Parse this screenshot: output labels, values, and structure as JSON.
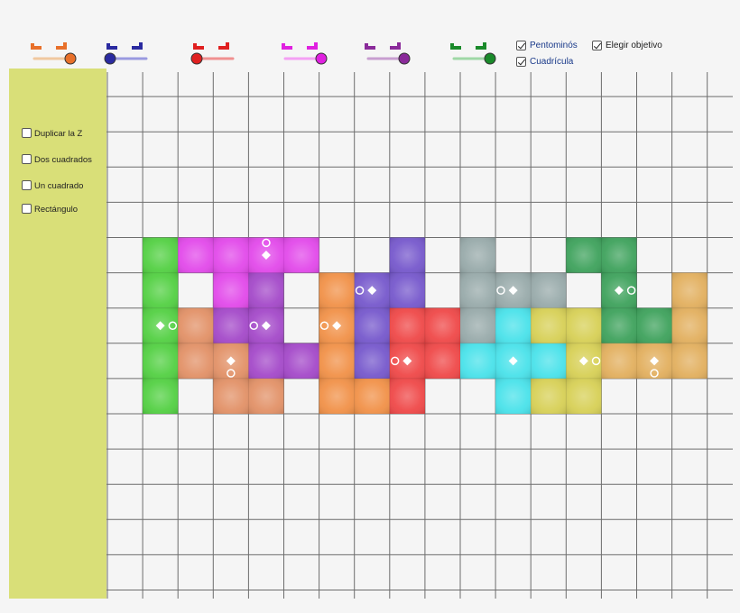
{
  "colors": {
    "sidebar_bg": "#d9df78",
    "grid_line": "#6d6d6d",
    "link_blue": "#1a3a8a"
  },
  "sliders": [
    {
      "name": "orange",
      "color": "#e8702a",
      "track_color": "#f0c89f",
      "level": 1.0
    },
    {
      "name": "navy",
      "color": "#2a2aa0",
      "track_color": "#9a9ae0",
      "level": 0.0
    },
    {
      "name": "red",
      "color": "#e02020",
      "track_color": "#f09090",
      "level": 0.0
    },
    {
      "name": "magenta",
      "color": "#e020e0",
      "track_color": "#f4a0f4",
      "level": 1.0
    },
    {
      "name": "purple",
      "color": "#8a2a9a",
      "track_color": "#c89ed0",
      "level": 1.0
    },
    {
      "name": "green",
      "color": "#1a8a2a",
      "track_color": "#9fd8a6",
      "level": 1.0
    }
  ],
  "top_options": {
    "pentominos": {
      "label": "Pentominós",
      "checked": true
    },
    "cuadricula": {
      "label": "Cuadrícula",
      "checked": true
    },
    "elegir_objetivo": {
      "label": "Elegir objetivo",
      "checked": true
    }
  },
  "sidebar": {
    "options": [
      {
        "label": "Duplicar la Z",
        "checked": false
      },
      {
        "label": "Dos cuadrados",
        "checked": false
      },
      {
        "label": "Un cuadrado",
        "checked": false
      },
      {
        "label": "Rectángulo",
        "checked": false
      }
    ]
  },
  "pieces": [
    {
      "name": "green-i-piece",
      "color": "#44cc33",
      "cells": [
        [
          1,
          5
        ],
        [
          1,
          6
        ],
        [
          1,
          7
        ],
        [
          1,
          8
        ],
        [
          1,
          9
        ]
      ]
    },
    {
      "name": "magenta-t-piece",
      "color": "#e03ae8",
      "cells": [
        [
          2,
          5
        ],
        [
          3,
          5
        ],
        [
          4,
          5
        ],
        [
          5,
          5
        ],
        [
          3,
          6
        ]
      ]
    },
    {
      "name": "purple-piece",
      "color": "#9c3ac4",
      "cells": [
        [
          4,
          6
        ],
        [
          3,
          7
        ],
        [
          4,
          7
        ],
        [
          4,
          8
        ],
        [
          5,
          8
        ]
      ]
    },
    {
      "name": "salmon-piece",
      "color": "#e0885a",
      "cells": [
        [
          2,
          7
        ],
        [
          2,
          8
        ],
        [
          3,
          8
        ],
        [
          3,
          9
        ],
        [
          4,
          9
        ]
      ]
    },
    {
      "name": "orange-piece",
      "color": "#f08838",
      "cells": [
        [
          6,
          6
        ],
        [
          6,
          7
        ],
        [
          6,
          8
        ],
        [
          6,
          9
        ],
        [
          7,
          9
        ]
      ]
    },
    {
      "name": "indigo-piece",
      "color": "#6a4ac8",
      "cells": [
        [
          8,
          5
        ],
        [
          7,
          6
        ],
        [
          8,
          6
        ],
        [
          7,
          7
        ],
        [
          7,
          8
        ]
      ]
    },
    {
      "name": "red-piece",
      "color": "#ee3838",
      "cells": [
        [
          8,
          7
        ],
        [
          9,
          7
        ],
        [
          8,
          8
        ],
        [
          9,
          8
        ],
        [
          8,
          9
        ]
      ]
    },
    {
      "name": "gray-piece",
      "color": "#8fa3a3",
      "cells": [
        [
          10,
          5
        ],
        [
          10,
          6
        ],
        [
          11,
          6
        ],
        [
          12,
          6
        ],
        [
          10,
          7
        ]
      ]
    },
    {
      "name": "cyan-x-piece",
      "color": "#3ae0e8",
      "cells": [
        [
          11,
          7
        ],
        [
          10,
          8
        ],
        [
          11,
          8
        ],
        [
          12,
          8
        ],
        [
          11,
          9
        ]
      ]
    },
    {
      "name": "yellow-piece",
      "color": "#d4cc48",
      "cells": [
        [
          12,
          7
        ],
        [
          13,
          7
        ],
        [
          13,
          8
        ],
        [
          12,
          9
        ],
        [
          13,
          9
        ]
      ]
    },
    {
      "name": "darkgreen-piece",
      "color": "#2e9a4e",
      "cells": [
        [
          13,
          5
        ],
        [
          14,
          5
        ],
        [
          14,
          6
        ],
        [
          14,
          7
        ],
        [
          15,
          7
        ]
      ]
    },
    {
      "name": "tan-piece",
      "color": "#e0a850",
      "cells": [
        [
          16,
          6
        ],
        [
          16,
          7
        ],
        [
          14,
          8
        ],
        [
          15,
          8
        ],
        [
          16,
          8
        ]
      ]
    }
  ],
  "markers": [
    {
      "type": "circle",
      "col": 4.5,
      "row": 5.15
    },
    {
      "type": "diamond",
      "col": 4.5,
      "row": 5.5
    },
    {
      "type": "diamond",
      "col": 1.5,
      "row": 7.5
    },
    {
      "type": "circle",
      "col": 1.85,
      "row": 7.5
    },
    {
      "type": "circle",
      "col": 4.15,
      "row": 7.5
    },
    {
      "type": "diamond",
      "col": 4.5,
      "row": 7.5
    },
    {
      "type": "diamond",
      "col": 3.5,
      "row": 8.5
    },
    {
      "type": "circle",
      "col": 3.5,
      "row": 8.85
    },
    {
      "type": "circle",
      "col": 6.15,
      "row": 7.5
    },
    {
      "type": "diamond",
      "col": 6.5,
      "row": 7.5
    },
    {
      "type": "circle",
      "col": 7.15,
      "row": 6.5
    },
    {
      "type": "diamond",
      "col": 7.5,
      "row": 6.5
    },
    {
      "type": "circle",
      "col": 8.15,
      "row": 8.5
    },
    {
      "type": "diamond",
      "col": 8.5,
      "row": 8.5
    },
    {
      "type": "circle",
      "col": 11.15,
      "row": 6.5
    },
    {
      "type": "diamond",
      "col": 11.5,
      "row": 6.5
    },
    {
      "type": "diamond",
      "col": 11.5,
      "row": 8.5
    },
    {
      "type": "diamond",
      "col": 13.5,
      "row": 8.5
    },
    {
      "type": "circle",
      "col": 13.85,
      "row": 8.5
    },
    {
      "type": "diamond",
      "col": 14.5,
      "row": 6.5
    },
    {
      "type": "circle",
      "col": 14.85,
      "row": 6.5
    },
    {
      "type": "diamond",
      "col": 15.5,
      "row": 8.5
    },
    {
      "type": "circle",
      "col": 15.5,
      "row": 8.85
    }
  ]
}
